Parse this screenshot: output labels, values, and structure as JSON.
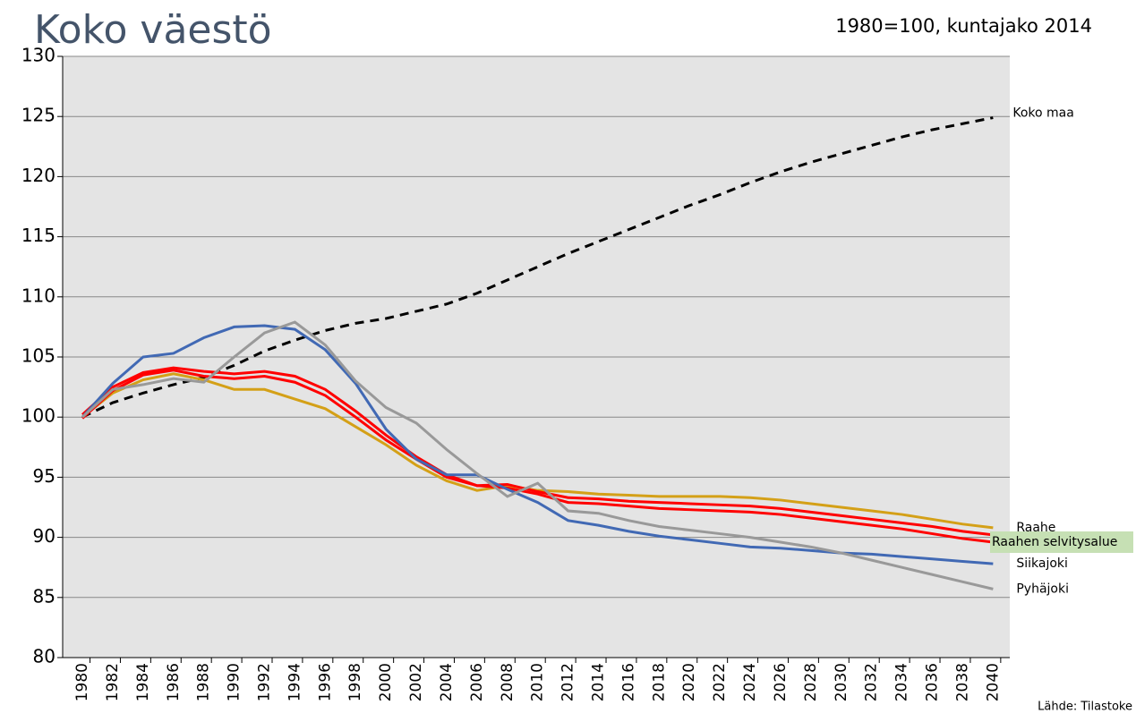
{
  "chart_data": {
    "type": "line",
    "title": "Koko väestö",
    "subtitle": "1980=100, kuntajako 2014",
    "source": "Lähde: Tilastoke",
    "x": [
      1980,
      1982,
      1984,
      1986,
      1988,
      1990,
      1992,
      1994,
      1996,
      1998,
      2000,
      2002,
      2004,
      2006,
      2008,
      2010,
      2012,
      2014,
      2016,
      2018,
      2020,
      2022,
      2024,
      2026,
      2028,
      2030,
      2032,
      2034,
      2036,
      2038,
      2040
    ],
    "xlim": [
      1978.7,
      2041.1
    ],
    "xticks": [
      1980,
      1982,
      1984,
      1986,
      1988,
      1990,
      1992,
      1994,
      1996,
      1998,
      2000,
      2002,
      2004,
      2006,
      2008,
      2010,
      2012,
      2014,
      2016,
      2018,
      2020,
      2022,
      2024,
      2026,
      2028,
      2030,
      2032,
      2034,
      2036,
      2038,
      2040
    ],
    "ylim": [
      80,
      130
    ],
    "yticks": [
      80,
      85,
      90,
      95,
      100,
      105,
      110,
      115,
      120,
      125,
      130
    ],
    "grid": true,
    "series": [
      {
        "name": "Koko maa",
        "color": "#000000",
        "dashed": true,
        "values": [
          100,
          101.2,
          102.0,
          102.7,
          103.3,
          104.3,
          105.5,
          106.4,
          107.2,
          107.8,
          108.2,
          108.8,
          109.4,
          110.3,
          111.4,
          112.5,
          113.6,
          114.6,
          115.6,
          116.6,
          117.6,
          118.5,
          119.5,
          120.4,
          121.2,
          121.9,
          122.6,
          123.3,
          123.9,
          124.4,
          124.9
        ]
      },
      {
        "name": "Raahe",
        "color": "#d4a017",
        "values": [
          100,
          102.0,
          103.1,
          103.6,
          103.1,
          102.3,
          102.3,
          101.5,
          100.7,
          99.2,
          97.7,
          96.0,
          94.7,
          93.9,
          94.3,
          93.9,
          93.8,
          93.6,
          93.5,
          93.4,
          93.4,
          93.4,
          93.3,
          93.1,
          92.8,
          92.5,
          92.2,
          91.9,
          91.5,
          91.1,
          90.8
        ]
      },
      {
        "color": "#ff0000",
        "values": [
          100.2,
          102.5,
          103.7,
          104.1,
          103.8,
          103.6,
          103.8,
          103.4,
          102.3,
          100.5,
          98.5,
          96.7,
          95.2,
          94.3,
          94.4,
          93.8,
          93.3,
          93.2,
          93.0,
          92.9,
          92.8,
          92.7,
          92.6,
          92.4,
          92.1,
          91.8,
          91.5,
          91.2,
          90.9,
          90.5,
          90.2
        ]
      },
      {
        "name": "Raahen selvitysalue",
        "color": "#ff0000",
        "label_background": "#c6e0b4",
        "values": [
          99.9,
          102.2,
          103.5,
          103.9,
          103.4,
          103.2,
          103.4,
          102.9,
          101.8,
          100.0,
          98.1,
          96.5,
          95.0,
          94.3,
          94.1,
          93.6,
          92.9,
          92.8,
          92.6,
          92.4,
          92.3,
          92.2,
          92.1,
          91.9,
          91.6,
          91.3,
          91.0,
          90.7,
          90.3,
          89.9,
          89.6
        ]
      },
      {
        "name": "Siikajoki",
        "color": "#4169b4",
        "values": [
          100,
          102.8,
          105.0,
          105.3,
          106.6,
          107.5,
          107.6,
          107.3,
          105.6,
          102.8,
          99.0,
          96.5,
          95.2,
          95.2,
          94.0,
          92.9,
          91.4,
          91.0,
          90.5,
          90.1,
          89.8,
          89.5,
          89.2,
          89.1,
          88.9,
          88.7,
          88.6,
          88.4,
          88.2,
          88.0,
          87.8
        ]
      },
      {
        "name": "Pyhäjoki",
        "color": "#999999",
        "values": [
          100,
          102.3,
          102.7,
          103.2,
          102.9,
          105.0,
          107.0,
          107.9,
          106.0,
          103.0,
          100.8,
          99.5,
          97.3,
          95.3,
          93.4,
          94.5,
          92.2,
          92.0,
          91.4,
          90.9,
          90.6,
          90.3,
          90.0,
          89.6,
          89.2,
          88.7,
          88.1,
          87.5,
          86.9,
          86.3,
          85.7
        ]
      }
    ]
  }
}
